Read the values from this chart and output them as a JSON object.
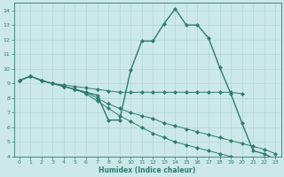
{
  "xlabel": "Humidex (Indice chaleur)",
  "background_color": "#cce8e8",
  "line_color": "#2e7b6e",
  "xlim": [
    -0.5,
    23.5
  ],
  "ylim": [
    4,
    14.5
  ],
  "yticks": [
    4,
    5,
    6,
    7,
    8,
    9,
    10,
    11,
    12,
    13,
    14
  ],
  "xticks": [
    0,
    1,
    2,
    3,
    4,
    5,
    6,
    7,
    8,
    9,
    10,
    11,
    12,
    13,
    14,
    15,
    16,
    17,
    18,
    19,
    20,
    21,
    22,
    23
  ],
  "lines": [
    {
      "x": [
        0,
        1,
        2,
        3,
        4,
        5,
        6,
        7,
        8,
        9,
        10,
        11,
        12,
        13,
        14,
        15,
        16,
        17,
        18,
        19,
        20,
        21,
        22,
        23
      ],
      "y": [
        9.2,
        9.5,
        9.2,
        9.0,
        8.8,
        8.6,
        8.4,
        8.2,
        6.5,
        6.5,
        9.9,
        11.9,
        11.9,
        13.1,
        14.1,
        13.0,
        13.0,
        12.1,
        10.1,
        8.3,
        6.3,
        4.4,
        4.2,
        3.8
      ],
      "style": "-",
      "marker": "D",
      "markersize": 2.0,
      "linewidth": 1.0
    },
    {
      "x": [
        0,
        1,
        2,
        3,
        4,
        5,
        6,
        7,
        8,
        9,
        10,
        11,
        12,
        13,
        14,
        15,
        16,
        17,
        18,
        19,
        20
      ],
      "y": [
        9.2,
        9.5,
        9.2,
        9.0,
        8.9,
        8.8,
        8.7,
        8.6,
        8.5,
        8.4,
        8.4,
        8.4,
        8.4,
        8.4,
        8.4,
        8.4,
        8.4,
        8.4,
        8.4,
        8.4,
        8.3
      ],
      "style": "-",
      "marker": "D",
      "markersize": 2.0,
      "linewidth": 0.7
    },
    {
      "x": [
        0,
        1,
        2,
        3,
        4,
        5,
        6,
        7,
        8,
        9,
        10,
        11,
        12,
        13,
        14,
        15,
        16,
        17,
        18,
        19,
        20,
        21,
        22,
        23
      ],
      "y": [
        9.2,
        9.5,
        9.2,
        9.0,
        8.8,
        8.6,
        8.4,
        8.0,
        7.6,
        7.3,
        7.0,
        6.8,
        6.6,
        6.3,
        6.1,
        5.9,
        5.7,
        5.5,
        5.3,
        5.1,
        4.9,
        4.7,
        4.5,
        4.2
      ],
      "style": "-",
      "marker": "D",
      "markersize": 2.0,
      "linewidth": 0.7
    },
    {
      "x": [
        0,
        1,
        2,
        3,
        4,
        5,
        6,
        7,
        8,
        9,
        10,
        11,
        12,
        13,
        14,
        15,
        16,
        17,
        18,
        19,
        20,
        21,
        22,
        23
      ],
      "y": [
        9.2,
        9.5,
        9.2,
        9.0,
        8.8,
        8.6,
        8.3,
        7.8,
        7.3,
        6.8,
        6.4,
        6.0,
        5.6,
        5.3,
        5.0,
        4.8,
        4.6,
        4.4,
        4.2,
        4.0,
        3.9,
        3.8,
        3.7,
        3.7
      ],
      "style": "-",
      "marker": "D",
      "markersize": 2.0,
      "linewidth": 0.7
    }
  ]
}
